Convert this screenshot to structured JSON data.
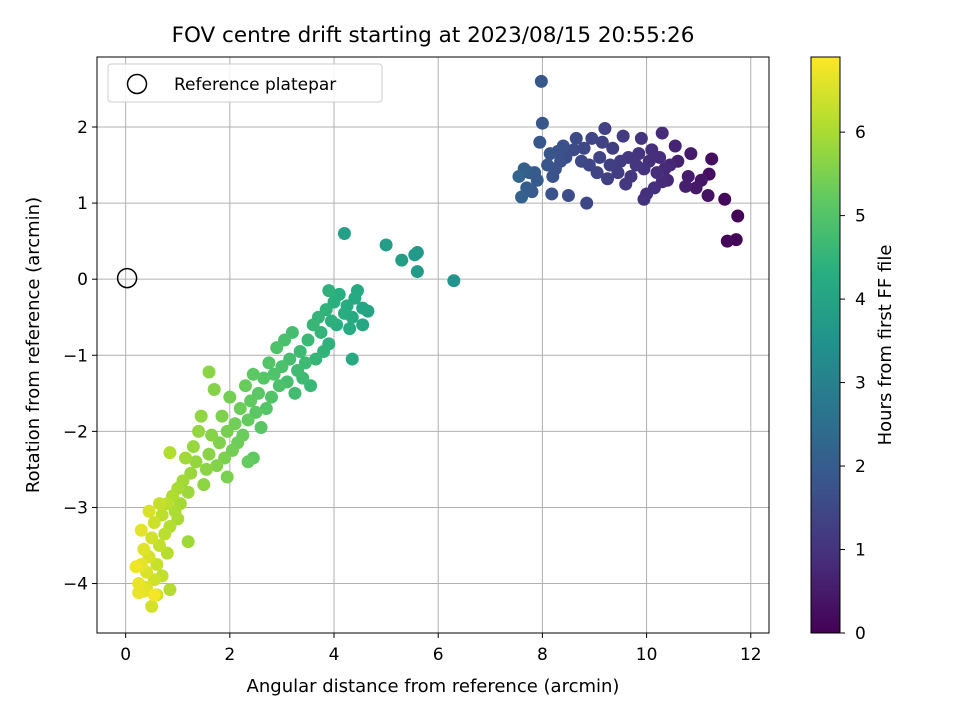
{
  "chart_data": {
    "type": "scatter",
    "title": "FOV centre drift starting at 2023/08/15 20:55:26",
    "xlabel": "Angular distance from reference (arcmin)",
    "ylabel": "Rotation from reference (arcmin)",
    "xlim": [
      -0.55,
      12.35
    ],
    "ylim": [
      -4.65,
      2.92
    ],
    "xticks": [
      0,
      2,
      4,
      6,
      8,
      10,
      12
    ],
    "yticks": [
      -4,
      -3,
      -2,
      -1,
      0,
      1,
      2
    ],
    "grid": true,
    "legend": {
      "placement": "upper-left",
      "entries": [
        {
          "label": "Reference platepar",
          "marker": "open-circle"
        }
      ]
    },
    "reference_point": {
      "x": 0,
      "y": 0
    },
    "colorbar": {
      "label": "Hours from first FF file",
      "colormap": "viridis",
      "range": [
        0,
        6.9
      ],
      "ticks": [
        0,
        1,
        2,
        3,
        4,
        5,
        6
      ]
    },
    "series": [
      {
        "color_value_unit": "hours",
        "points": [
          [
            11.75,
            0.83,
            0.05
          ],
          [
            11.72,
            0.52,
            0.08
          ],
          [
            11.55,
            0.5,
            0.12
          ],
          [
            11.5,
            1.05,
            0.15
          ],
          [
            11.25,
            1.58,
            0.25
          ],
          [
            11.2,
            1.38,
            0.3
          ],
          [
            11.18,
            1.1,
            0.35
          ],
          [
            11.05,
            1.3,
            0.4
          ],
          [
            10.95,
            1.2,
            0.45
          ],
          [
            10.85,
            1.65,
            0.5
          ],
          [
            10.8,
            1.35,
            0.55
          ],
          [
            10.75,
            1.22,
            0.58
          ],
          [
            10.6,
            1.55,
            0.62
          ],
          [
            10.55,
            1.75,
            0.68
          ],
          [
            10.45,
            1.5,
            0.72
          ],
          [
            10.4,
            1.3,
            0.76
          ],
          [
            10.35,
            1.45,
            0.8
          ],
          [
            10.3,
            1.28,
            0.82
          ],
          [
            10.3,
            1.92,
            0.84
          ],
          [
            10.25,
            1.6,
            0.86
          ],
          [
            10.2,
            1.4,
            0.88
          ],
          [
            10.15,
            1.2,
            0.9
          ],
          [
            10.1,
            1.7,
            0.92
          ],
          [
            10.05,
            1.55,
            0.94
          ],
          [
            10.0,
            1.12,
            0.96
          ],
          [
            9.95,
            1.05,
            0.98
          ],
          [
            9.95,
            1.45,
            1.0
          ],
          [
            9.9,
            1.85,
            1.02
          ],
          [
            9.85,
            1.65,
            1.05
          ],
          [
            9.8,
            1.5,
            1.08
          ],
          [
            9.7,
            1.35,
            1.1
          ],
          [
            9.65,
            1.6,
            1.12
          ],
          [
            9.6,
            1.25,
            1.15
          ],
          [
            9.55,
            1.88,
            1.18
          ],
          [
            9.5,
            1.55,
            1.2
          ],
          [
            9.45,
            1.4,
            1.22
          ],
          [
            9.35,
            1.72,
            1.25
          ],
          [
            9.3,
            1.5,
            1.28
          ],
          [
            9.25,
            1.32,
            1.3
          ],
          [
            9.2,
            1.98,
            1.32
          ],
          [
            9.15,
            1.8,
            1.35
          ],
          [
            9.1,
            1.6,
            1.38
          ],
          [
            9.05,
            1.4,
            1.4
          ],
          [
            8.95,
            1.85,
            1.42
          ],
          [
            8.9,
            1.5,
            1.45
          ],
          [
            8.85,
            1.0,
            1.48
          ],
          [
            8.8,
            1.72,
            1.5
          ],
          [
            8.75,
            1.55,
            1.52
          ],
          [
            8.65,
            1.85,
            1.55
          ],
          [
            8.6,
            1.7,
            1.58
          ],
          [
            8.5,
            1.1,
            1.6
          ],
          [
            8.45,
            1.6,
            1.62
          ],
          [
            8.4,
            1.75,
            1.65
          ],
          [
            8.35,
            1.55,
            1.68
          ],
          [
            8.3,
            1.68,
            1.7
          ],
          [
            8.25,
            1.45,
            1.72
          ],
          [
            8.2,
            1.35,
            1.75
          ],
          [
            8.18,
            1.12,
            1.78
          ],
          [
            8.15,
            1.65,
            1.8
          ],
          [
            8.1,
            1.5,
            1.82
          ],
          [
            8.0,
            2.05,
            1.85
          ],
          [
            7.98,
            2.6,
            1.88
          ],
          [
            7.95,
            1.8,
            1.9
          ],
          [
            7.9,
            1.3,
            1.92
          ],
          [
            7.85,
            1.4,
            1.95
          ],
          [
            7.8,
            1.15,
            1.98
          ],
          [
            7.75,
            1.4,
            2.0
          ],
          [
            7.7,
            1.2,
            2.05
          ],
          [
            7.65,
            1.45,
            2.1
          ],
          [
            7.6,
            1.08,
            2.15
          ],
          [
            7.55,
            1.35,
            2.2
          ],
          [
            6.3,
            -0.02,
            3.55
          ],
          [
            5.6,
            0.35,
            3.65
          ],
          [
            5.55,
            0.32,
            3.7
          ],
          [
            5.6,
            0.1,
            3.75
          ],
          [
            5.3,
            0.25,
            3.8
          ],
          [
            5.0,
            0.45,
            3.85
          ],
          [
            4.2,
            0.6,
            3.9
          ],
          [
            4.65,
            -0.42,
            4.0
          ],
          [
            4.55,
            -0.38,
            4.05
          ],
          [
            4.55,
            -0.6,
            4.1
          ],
          [
            4.45,
            -0.15,
            4.12
          ],
          [
            4.4,
            -0.25,
            4.15
          ],
          [
            4.35,
            -0.5,
            4.18
          ],
          [
            4.35,
            -1.05,
            4.2
          ],
          [
            4.3,
            -0.65,
            4.22
          ],
          [
            4.25,
            -0.35,
            4.25
          ],
          [
            4.2,
            -0.45,
            4.28
          ],
          [
            4.1,
            -0.2,
            4.3
          ],
          [
            4.05,
            -0.6,
            4.32
          ],
          [
            4.0,
            -0.3,
            4.35
          ],
          [
            3.95,
            -0.55,
            4.38
          ],
          [
            3.9,
            -0.85,
            4.4
          ],
          [
            3.9,
            -0.15,
            4.42
          ],
          [
            3.85,
            -0.4,
            4.45
          ],
          [
            3.8,
            -0.95,
            4.48
          ],
          [
            3.75,
            -0.7,
            4.5
          ],
          [
            3.7,
            -0.5,
            4.52
          ],
          [
            3.65,
            -1.05,
            4.55
          ],
          [
            3.6,
            -0.6,
            4.58
          ],
          [
            3.55,
            -1.4,
            4.6
          ],
          [
            3.5,
            -0.8,
            4.62
          ],
          [
            3.45,
            -1.1,
            4.65
          ],
          [
            3.4,
            -1.3,
            4.68
          ],
          [
            3.35,
            -0.95,
            4.7
          ],
          [
            3.3,
            -1.2,
            4.72
          ],
          [
            3.25,
            -1.5,
            4.75
          ],
          [
            3.2,
            -0.7,
            4.78
          ],
          [
            3.15,
            -1.05,
            4.8
          ],
          [
            3.1,
            -1.35,
            4.82
          ],
          [
            3.05,
            -0.8,
            4.85
          ],
          [
            3.0,
            -1.15,
            4.88
          ],
          [
            2.95,
            -1.4,
            4.9
          ],
          [
            2.9,
            -0.9,
            4.92
          ],
          [
            2.85,
            -1.25,
            4.95
          ],
          [
            2.8,
            -1.55,
            4.98
          ],
          [
            2.75,
            -1.1,
            5.0
          ],
          [
            2.7,
            -1.7,
            5.02
          ],
          [
            2.65,
            -1.3,
            5.05
          ],
          [
            2.6,
            -1.95,
            5.08
          ],
          [
            2.55,
            -1.5,
            5.1
          ],
          [
            2.5,
            -1.75,
            5.12
          ],
          [
            2.45,
            -1.25,
            5.15
          ],
          [
            2.45,
            -2.35,
            5.18
          ],
          [
            2.4,
            -1.6,
            5.2
          ],
          [
            2.35,
            -1.85,
            5.22
          ],
          [
            2.35,
            -2.4,
            5.25
          ],
          [
            2.3,
            -1.4,
            5.28
          ],
          [
            2.25,
            -2.05,
            5.3
          ],
          [
            2.2,
            -1.7,
            5.32
          ],
          [
            2.15,
            -2.15,
            5.35
          ],
          [
            2.1,
            -1.9,
            5.38
          ],
          [
            2.05,
            -2.25,
            5.4
          ],
          [
            2.0,
            -1.55,
            5.42
          ],
          [
            1.95,
            -2.0,
            5.45
          ],
          [
            1.95,
            -2.6,
            5.48
          ],
          [
            1.9,
            -2.35,
            5.5
          ],
          [
            1.85,
            -1.8,
            5.52
          ],
          [
            1.8,
            -2.15,
            5.55
          ],
          [
            1.75,
            -2.45,
            5.58
          ],
          [
            1.7,
            -1.45,
            5.6
          ],
          [
            1.65,
            -2.05,
            5.62
          ],
          [
            1.6,
            -2.3,
            5.65
          ],
          [
            1.6,
            -1.22,
            5.67
          ],
          [
            1.55,
            -2.5,
            5.68
          ],
          [
            1.5,
            -2.7,
            5.7
          ],
          [
            1.45,
            -1.8,
            5.72
          ],
          [
            1.4,
            -2.0,
            5.75
          ],
          [
            1.35,
            -2.4,
            5.78
          ],
          [
            1.3,
            -2.2,
            5.8
          ],
          [
            1.25,
            -2.55,
            5.82
          ],
          [
            1.2,
            -2.8,
            5.85
          ],
          [
            1.2,
            -3.45,
            5.88
          ],
          [
            1.15,
            -2.35,
            5.9
          ],
          [
            1.1,
            -2.65,
            5.92
          ],
          [
            1.05,
            -2.95,
            5.95
          ],
          [
            1.0,
            -2.75,
            5.98
          ],
          [
            1.0,
            -3.15,
            6.0
          ],
          [
            0.95,
            -3.05,
            6.02
          ],
          [
            0.9,
            -2.85,
            6.05
          ],
          [
            0.85,
            -2.28,
            6.08
          ],
          [
            0.85,
            -3.25,
            6.1
          ],
          [
            0.85,
            -4.08,
            6.12
          ],
          [
            0.8,
            -3.6,
            6.15
          ],
          [
            0.8,
            -2.95,
            6.18
          ],
          [
            0.75,
            -3.35,
            6.2
          ],
          [
            0.7,
            -3.1,
            6.22
          ],
          [
            0.7,
            -3.9,
            6.25
          ],
          [
            0.65,
            -3.5,
            6.28
          ],
          [
            0.65,
            -2.95,
            6.3
          ],
          [
            0.6,
            -3.75,
            6.32
          ],
          [
            0.6,
            -4.15,
            6.35
          ],
          [
            0.55,
            -3.2,
            6.38
          ],
          [
            0.55,
            -3.95,
            6.4
          ],
          [
            0.5,
            -3.4,
            6.42
          ],
          [
            0.5,
            -4.3,
            6.45
          ],
          [
            0.45,
            -3.65,
            6.48
          ],
          [
            0.45,
            -3.05,
            6.5
          ],
          [
            0.4,
            -3.85,
            6.52
          ],
          [
            0.4,
            -4.05,
            6.55
          ],
          [
            0.35,
            -3.55,
            6.58
          ],
          [
            0.35,
            -4.1,
            6.6
          ],
          [
            0.3,
            -3.3,
            6.62
          ],
          [
            0.3,
            -3.75,
            6.65
          ],
          [
            0.25,
            -4.0,
            6.68
          ],
          [
            0.25,
            -4.12,
            6.7
          ],
          [
            0.2,
            -3.78,
            6.75
          ],
          [
            0.55,
            -4.15,
            6.8
          ]
        ]
      }
    ]
  }
}
